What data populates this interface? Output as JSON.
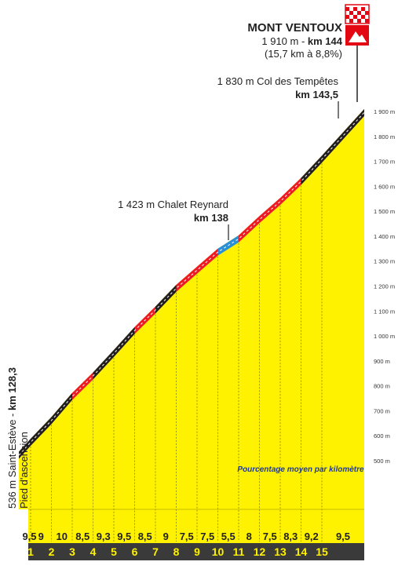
{
  "summit": {
    "name": "MONT VENTOUX",
    "altitude_label": "1 910 m - ",
    "km_label": "km 144",
    "climb_label": "(15,7 km à 8,8%)"
  },
  "col": {
    "altitude_name": "1 830 m Col des Tempêtes",
    "km_label": "km 143,5"
  },
  "chalet": {
    "altitude_name": "1 423 m Chalet Reynard",
    "km_label": "km 138"
  },
  "start": {
    "altitude_name": "536 m Saint-Estève - ",
    "km_label": "km 128,3",
    "subtitle": "Pied d'ascension"
  },
  "per_km_caption": "Pourcentage moyen par kilomètre",
  "colors": {
    "fill": "#fff200",
    "band_0": "#231f20",
    "band_1": "#ed1c24",
    "band_2": "#2b8fd6",
    "base": "#3a3a3a",
    "dotted": "#9a9a00",
    "flag_red": "#e30613"
  },
  "chart_data": {
    "type": "area",
    "title": "MONT VENTOUX",
    "xlabel": "",
    "ylabel": "",
    "x_unit": "km",
    "y_unit": "m",
    "ylim": [
      500,
      1900
    ],
    "y_ticks": [
      500,
      600,
      700,
      800,
      900,
      1000,
      1100,
      1200,
      1300,
      1400,
      1500,
      1600,
      1700,
      1800,
      1900
    ],
    "y_tick_labels": [
      "500 m",
      "600 m",
      "700 m",
      "800 m",
      "900 m",
      "1 000 m",
      "1 100 m",
      "1 200 m",
      "1 300 m",
      "1 400 m",
      "1 500 m",
      "1 600 m",
      "1 700 m",
      "1 800 m",
      "1 900 m"
    ],
    "categories": [
      "1",
      "2",
      "3",
      "4",
      "5",
      "6",
      "7",
      "8",
      "9",
      "10",
      "11",
      "12",
      "13",
      "14",
      "15"
    ],
    "gradients": [
      9.5,
      9,
      10,
      8.5,
      9.3,
      9.5,
      8.5,
      9,
      7.5,
      7.5,
      5.5,
      8,
      7.5,
      8.3,
      9.2,
      9.5
    ],
    "gradient_labels": [
      "9,5",
      "9",
      "10",
      "8,5",
      "9,3",
      "9,5",
      "8,5",
      "9",
      "7,5",
      "7,5",
      "5,5",
      "8",
      "7,5",
      "8,3",
      "9,2",
      "9,5"
    ],
    "gradient_bands": [
      0,
      0,
      0,
      1,
      0,
      0,
      1,
      0,
      1,
      1,
      2,
      1,
      1,
      1,
      0,
      0
    ],
    "profile_start_m": 536,
    "profile_end_m": 1910
  }
}
